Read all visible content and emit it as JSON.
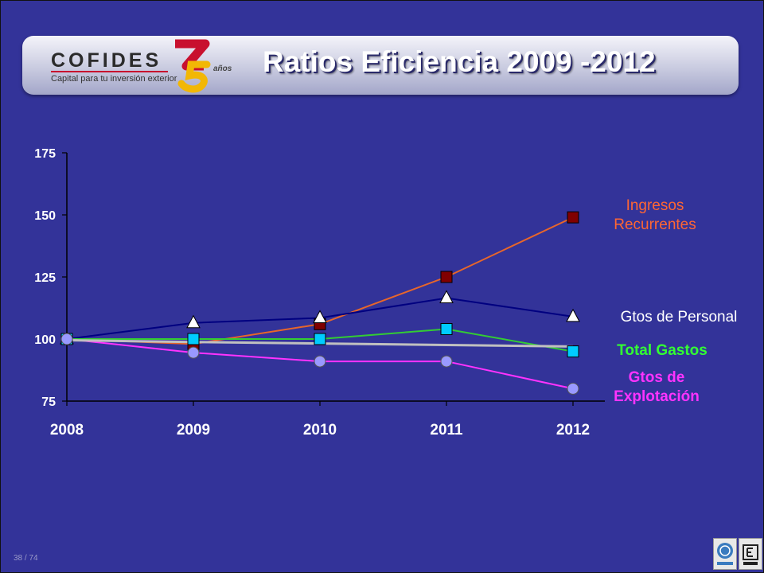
{
  "header": {
    "logo_text": "COFIDES",
    "logo_tagline": "Capital para tu inversión exterior",
    "anniversary_suffix": "años",
    "title": "Ratios Eficiencia 2009 -2012"
  },
  "footer": {
    "page_number": "38 / 74"
  },
  "colors": {
    "background": "#333399",
    "ingresos": "#E8662A",
    "personal": "#000080",
    "total_gastos": "#33CC33",
    "explotacion": "#FF33FF",
    "trend": "#C0C0C0"
  },
  "chart_data": {
    "type": "line",
    "title": "",
    "xlabel": "",
    "ylabel": "",
    "categories": [
      "2008",
      "2009",
      "2010",
      "2011",
      "2012"
    ],
    "y_ticks": [
      75,
      100,
      125,
      150,
      175
    ],
    "ylim": [
      75,
      175
    ],
    "grid": false,
    "legend_placement": "right (labels at series ends)",
    "series": [
      {
        "name": "Ingresos Recurrentes",
        "label_lines": [
          "Ingresos",
          "Recurrentes"
        ],
        "values": [
          100,
          98,
          106,
          125,
          149
        ],
        "marker": "square",
        "color": "#E8662A",
        "marker_color": "#800000",
        "label_color": "#FF6633"
      },
      {
        "name": "Gtos de Personal",
        "label_lines": [
          "Gtos de Personal"
        ],
        "values": [
          100,
          106.5,
          108.5,
          116.5,
          109
        ],
        "marker": "triangle",
        "color": "#000080",
        "marker_color": "#FFFFFF",
        "label_color": "#FFFFFF"
      },
      {
        "name": "Total Gastos",
        "label_lines": [
          "Total Gastos"
        ],
        "values": [
          100,
          100,
          100,
          104,
          95
        ],
        "marker": "square",
        "color": "#33CC33",
        "marker_color": "#00CCFF",
        "label_color": "#33FF33"
      },
      {
        "name": "Gtos de Explotación",
        "label_lines": [
          "Gtos  de",
          "Explotación"
        ],
        "values": [
          100,
          94.5,
          91,
          91,
          80
        ],
        "marker": "circle",
        "color": "#FF33FF",
        "marker_color": "#9999FF",
        "label_color": "#FF33FF"
      },
      {
        "name": "",
        "values": [
          99.5,
          98.8,
          98.2,
          97.6,
          97
        ],
        "marker": "none",
        "color": "#C0C0C0"
      }
    ]
  }
}
